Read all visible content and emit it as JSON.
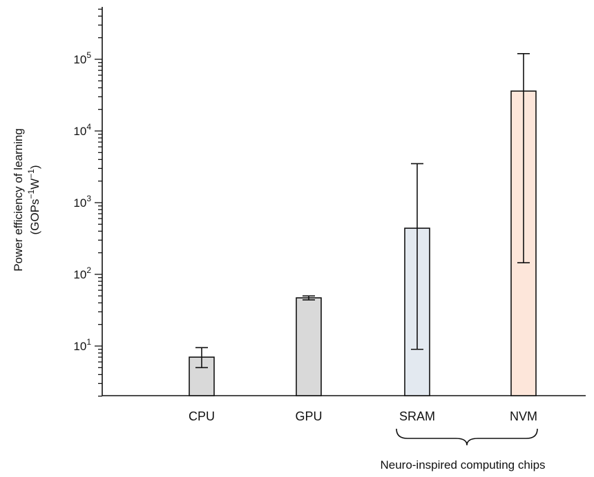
{
  "chart_data": {
    "type": "bar",
    "yscale": "log",
    "ylim": [
      2,
      500000
    ],
    "ylabel_line1": "Power efficiency of learning",
    "ylabel_line2_prefix": "(GOPs",
    "ylabel_line2_mid": "W",
    "ylabel_line2_suffix": ")",
    "ylabel_exponent": "−1",
    "y_tick_base": "10",
    "y_ticks": [
      {
        "value": 10,
        "exp": "1"
      },
      {
        "value": 100,
        "exp": "2"
      },
      {
        "value": 1000,
        "exp": "3"
      },
      {
        "value": 10000,
        "exp": "4"
      },
      {
        "value": 100000,
        "exp": "5"
      }
    ],
    "categories": [
      "CPU",
      "GPU",
      "SRAM",
      "NVM"
    ],
    "values": [
      7,
      47,
      440,
      36000
    ],
    "error_low": [
      5,
      44,
      9,
      145
    ],
    "error_high": [
      9.5,
      50,
      3500,
      120000
    ],
    "bar_colors": [
      "#d9d9d9",
      "#d9d9d9",
      "#e3e9f0",
      "#fde6da"
    ],
    "bracket_categories": [
      "SRAM",
      "NVM"
    ],
    "bracket_label": "Neuro-inspired computing chips"
  }
}
